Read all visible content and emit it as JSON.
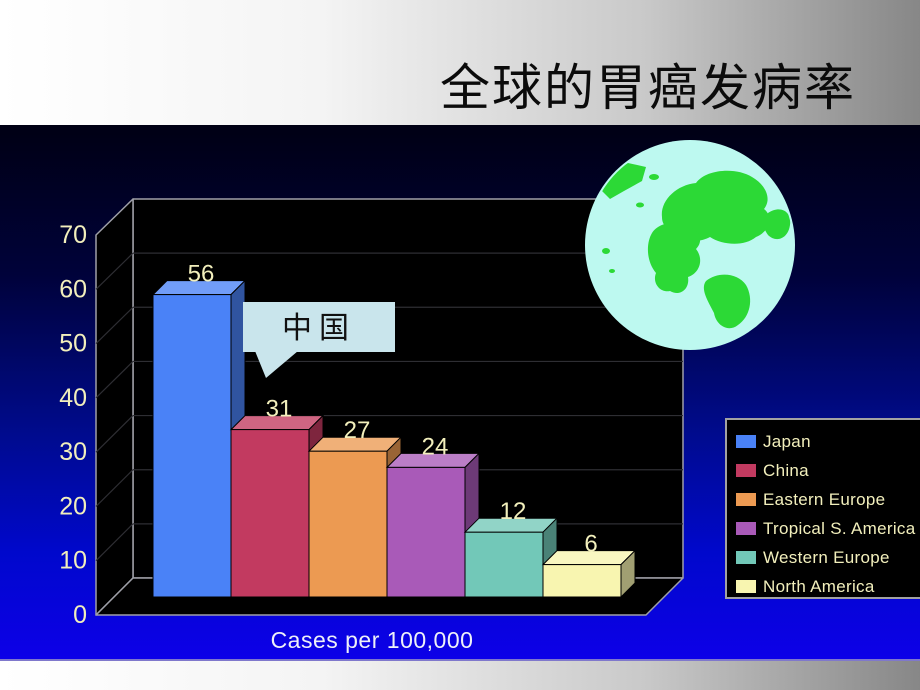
{
  "slide": {
    "title": "全球的胃癌发病率",
    "callout_label": "中国"
  },
  "chart_data": {
    "type": "bar",
    "style": "3d",
    "title": "全球的胃癌发病率",
    "categories": [
      "Japan",
      "China",
      "Eastern Europe",
      "Tropical S. America",
      "Western Europe",
      "North America"
    ],
    "values": [
      56,
      31,
      27,
      24,
      12,
      6
    ],
    "colors": [
      "#4a82f7",
      "#c23a60",
      "#ec9a52",
      "#a95ab8",
      "#72c8b8",
      "#f8f5b0"
    ],
    "xlabel": "Cases per 100,000",
    "ylabel": "",
    "ylim": [
      0,
      70
    ],
    "yticks": [
      0,
      10,
      20,
      30,
      40,
      50,
      60,
      70
    ],
    "grid": true,
    "legend_position": "right",
    "plot_background": "#000000"
  },
  "icons": {
    "globe": "earth-globe"
  },
  "colors": {
    "header_grad_left": "#ffffff",
    "header_grad_right": "#878787",
    "body_grad_top": "#000014",
    "body_grad_bottom": "#0d00e8",
    "label_color": "#f2efbc",
    "axis_title_color": "#eef0f8",
    "callout_bg": "#c9e5ec",
    "globe_sea": "#bdf9f0",
    "globe_land": "#2cd936",
    "legend_border": "#a2a2a2"
  }
}
